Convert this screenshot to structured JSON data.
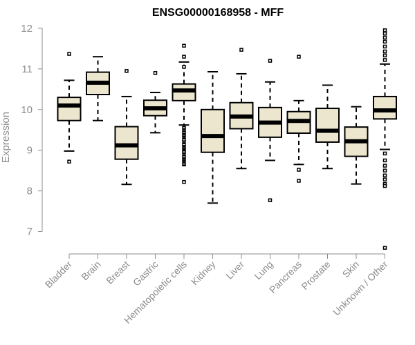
{
  "chart_data": {
    "type": "boxplot",
    "title": "ENSG00000168958 - MFF",
    "ylabel": "Expression",
    "ylim": [
      6.45,
      12.05
    ],
    "yticks": [
      7,
      8,
      9,
      10,
      11,
      12
    ],
    "box_fill": "#ede6cf",
    "box_stroke": "#000000",
    "axis_color": "#8c8c8c",
    "categories": [
      "Bladder",
      "Brain",
      "Breast",
      "Gastric",
      "Hematopoietic cells",
      "Kidney",
      "Liver",
      "Lung",
      "Pancreas",
      "Prostate",
      "Skin",
      "Unknown / Other"
    ],
    "boxes": [
      {
        "category": "Bladder",
        "lower_whisker": 8.98,
        "q1": 9.73,
        "median": 10.1,
        "q3": 10.3,
        "upper_whisker": 10.72,
        "outliers": [
          11.37,
          8.72
        ]
      },
      {
        "category": "Brain",
        "lower_whisker": 9.73,
        "q1": 10.37,
        "median": 10.66,
        "q3": 10.92,
        "upper_whisker": 11.3,
        "outliers": []
      },
      {
        "category": "Breast",
        "lower_whisker": 8.16,
        "q1": 8.78,
        "median": 9.12,
        "q3": 9.58,
        "upper_whisker": 10.32,
        "outliers": [
          10.95
        ]
      },
      {
        "category": "Gastric",
        "lower_whisker": 9.43,
        "q1": 9.85,
        "median": 10.03,
        "q3": 10.23,
        "upper_whisker": 10.42,
        "outliers": [
          10.9
        ]
      },
      {
        "category": "Hematopoietic cells",
        "lower_whisker": 9.62,
        "q1": 10.22,
        "median": 10.47,
        "q3": 10.63,
        "upper_whisker": 11.17,
        "outliers": [
          11.57,
          11.3,
          11.05,
          9.55,
          9.45,
          9.35,
          9.25,
          9.15,
          9.05,
          8.95,
          8.85,
          8.75,
          8.65,
          8.22
        ]
      },
      {
        "category": "Kidney",
        "lower_whisker": 7.7,
        "q1": 8.95,
        "median": 9.35,
        "q3": 10.0,
        "upper_whisker": 10.93,
        "outliers": []
      },
      {
        "category": "Liver",
        "lower_whisker": 8.55,
        "q1": 9.53,
        "median": 9.83,
        "q3": 10.17,
        "upper_whisker": 10.88,
        "outliers": [
          11.47
        ]
      },
      {
        "category": "Lung",
        "lower_whisker": 8.75,
        "q1": 9.32,
        "median": 9.68,
        "q3": 10.05,
        "upper_whisker": 10.68,
        "outliers": [
          11.2,
          7.77
        ]
      },
      {
        "category": "Pancreas",
        "lower_whisker": 8.65,
        "q1": 9.42,
        "median": 9.72,
        "q3": 9.95,
        "upper_whisker": 10.22,
        "outliers": [
          11.3,
          8.52,
          8.25
        ]
      },
      {
        "category": "Prostate",
        "lower_whisker": 8.55,
        "q1": 9.2,
        "median": 9.48,
        "q3": 10.03,
        "upper_whisker": 10.6,
        "outliers": []
      },
      {
        "category": "Skin",
        "lower_whisker": 8.17,
        "q1": 8.85,
        "median": 9.22,
        "q3": 9.57,
        "upper_whisker": 10.07,
        "outliers": []
      },
      {
        "category": "Unknown / Other",
        "lower_whisker": 9.02,
        "q1": 9.77,
        "median": 9.98,
        "q3": 10.32,
        "upper_whisker": 11.12,
        "outliers": [
          11.95,
          11.87,
          11.77,
          11.67,
          11.55,
          11.43,
          11.33,
          11.22,
          8.92,
          8.75,
          8.62,
          8.5,
          8.38,
          8.28,
          8.17,
          8.12,
          6.6
        ]
      }
    ]
  }
}
